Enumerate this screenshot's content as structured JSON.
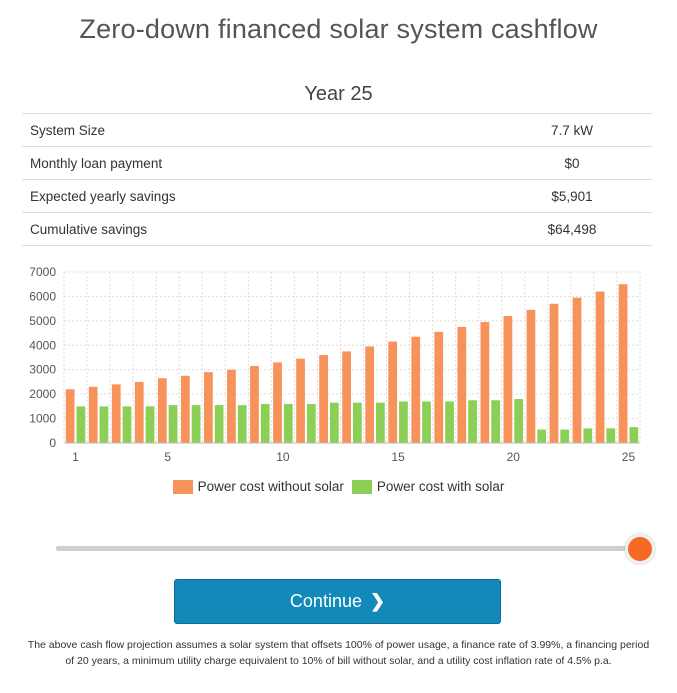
{
  "title": "Zero-down financed solar system cashflow",
  "year_label": "Year 25",
  "stats": [
    {
      "label": "System Size",
      "value": "7.7 kW"
    },
    {
      "label": "Monthly loan payment",
      "value": "$0"
    },
    {
      "label": "Expected yearly savings",
      "value": "$5,901"
    },
    {
      "label": "Cumulative savings",
      "value": "$64,498"
    }
  ],
  "colors": {
    "without_solar": "#f7925a",
    "with_solar": "#8ccf56",
    "accent": "#f46a25",
    "button": "#1289b9"
  },
  "chart_data": {
    "type": "bar",
    "x": [
      1,
      2,
      3,
      4,
      5,
      6,
      7,
      8,
      9,
      10,
      11,
      12,
      13,
      14,
      15,
      16,
      17,
      18,
      19,
      20,
      21,
      22,
      23,
      24,
      25
    ],
    "x_ticks": [
      1,
      5,
      10,
      15,
      20,
      25
    ],
    "y_ticks": [
      0,
      1000,
      2000,
      3000,
      4000,
      5000,
      6000,
      7000
    ],
    "ylim": [
      0,
      7000
    ],
    "grid": true,
    "legend_position": "bottom",
    "series": [
      {
        "name": "Power cost without solar",
        "values": [
          2200,
          2300,
          2400,
          2500,
          2650,
          2750,
          2900,
          3000,
          3150,
          3300,
          3450,
          3600,
          3750,
          3950,
          4150,
          4350,
          4550,
          4750,
          4950,
          5200,
          5450,
          5700,
          5950,
          6200,
          6500
        ]
      },
      {
        "name": "Power cost with solar",
        "values": [
          1500,
          1500,
          1500,
          1500,
          1550,
          1550,
          1550,
          1550,
          1600,
          1600,
          1600,
          1650,
          1650,
          1650,
          1700,
          1700,
          1700,
          1750,
          1750,
          1800,
          550,
          550,
          600,
          600,
          650
        ]
      }
    ]
  },
  "slider": {
    "value": 25,
    "min": 1,
    "max": 25
  },
  "continue_label": "Continue",
  "footnote": "The above cash flow projection assumes a solar system that offsets 100% of power usage, a finance rate of 3.99%, a financing period of 20 years, a minimum utility charge equivalent to 10% of bill without solar, and a utility cost inflation rate of 4.5% p.a."
}
